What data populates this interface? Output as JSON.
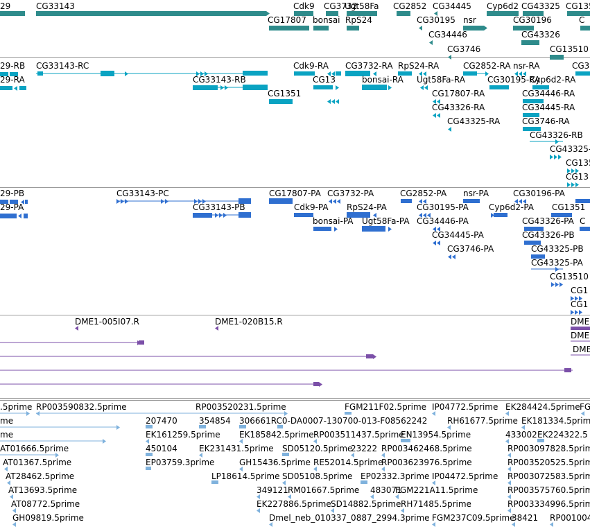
{
  "tracks": [
    {
      "name": "gene",
      "color": "#2e8b8b",
      "labels": [
        "29",
        "CG33143",
        "Cdk9",
        "CG3732",
        "Ugt58Fa",
        "CG2852",
        "CG34445",
        "Cyp6d2",
        "CG43325",
        "CG135",
        "CG17807",
        "bonsai",
        "RpS24",
        "CG30195",
        "nsr",
        "CG30196",
        "C",
        "CG34446",
        "CG43326",
        "CG3746",
        "CG13510"
      ]
    },
    {
      "name": "mrna",
      "color": "#0aa3c2",
      "labels": [
        "29-RB",
        "29-RA",
        "CG33143-RC",
        "CG33143-RB",
        "Cdk9-RA",
        "CG3732-RA",
        "RpS24-RA",
        "CG2852-RA",
        "nsr-RA",
        "CG30196-RA",
        "CG13",
        "bonsai-RA",
        "Ugt58Fa-RA",
        "CG30195-RA",
        "Cyp6d2-RA",
        "CG1351",
        "CG17807-RA",
        "CG34446-RA",
        "CG43326-RA",
        "CG34445-RA",
        "CG43325-RA",
        "CG3746-RA",
        "CG43326-RB",
        "CG43325-RB",
        "CG13510",
        "CG13",
        "CG135"
      ]
    },
    {
      "name": "protein",
      "color": "#2f6fd0",
      "labels": [
        "29-PB",
        "29-PA",
        "CG33143-PC",
        "CG33143-PB",
        "CG17807-PA",
        "CG3732-PA",
        "CG2852-PA",
        "nsr-PA",
        "CG30196-PA",
        "Cdk9-PA",
        "RpS24-PA",
        "CG30195-PA",
        "Cyp6d2-PA",
        "CG1351",
        "bonsai-PA",
        "Ugt58Fa-PA",
        "CG34446-PA",
        "CG43326-PA",
        "C",
        "CG34445-PA",
        "CG43326-PB",
        "CG3746-PA",
        "CG43325-PB",
        "CG43325-PA",
        "CG13510",
        "CG1",
        "CG1"
      ]
    },
    {
      "name": "bac",
      "color": "#7b4fa8",
      "labels": [
        "DME1-005I07.R",
        "DME1-020B15.R",
        "DME",
        "DME",
        "DME"
      ]
    },
    {
      "name": "est",
      "color": "#7fb2dd",
      "labels": [
        ".5prime",
        "RP003590832.5prime",
        "RP003520231.5prime",
        "FGM211F02.5prime",
        "IP04772.5prime",
        "EK284424.5prime",
        "FG",
        "me",
        "207470",
        "354854",
        "306661RC0-DA0007-130700-013-F08562242",
        "RH61677.5prime",
        "EK181334.5prime",
        "me",
        "EK161259.5prime",
        "EK185842.5prime",
        "RP003511437.5prime",
        "EN13954.5prime",
        "433002",
        "EK224322.5",
        "AT01666.5prime",
        "450104",
        "EK231431.5prime",
        "SD05120.5prime",
        "23222",
        "RP003462468.5prime",
        "RP003097828.5prime",
        "AT01367.5prime",
        "EP03759.3prime",
        "GH15436.5prime",
        "RE52014.5prime",
        "RP003623976.5prime",
        "RP003520525.5prime",
        "AT28462.5prime",
        "LP18614.5prime",
        "SD05108.5prime",
        "EP02332.3prime",
        "IP04472.5prime",
        "RP003072583.5prime",
        "AT13693.5prime",
        "349121",
        "RM01667.5prime",
        "483071",
        "FGM221A11.5prime",
        "RP003575760.5prime",
        "AT08772.5prime",
        "EK227886.5prime",
        "SD14882.5prime",
        "RH71485.5prime",
        "RP003334996.5prime",
        "GH09819.5prime",
        "Dmel_neb_010337_0887_2994.3prime",
        "FGM237C09.5prime",
        "38421",
        "RP001004"
      ]
    }
  ]
}
